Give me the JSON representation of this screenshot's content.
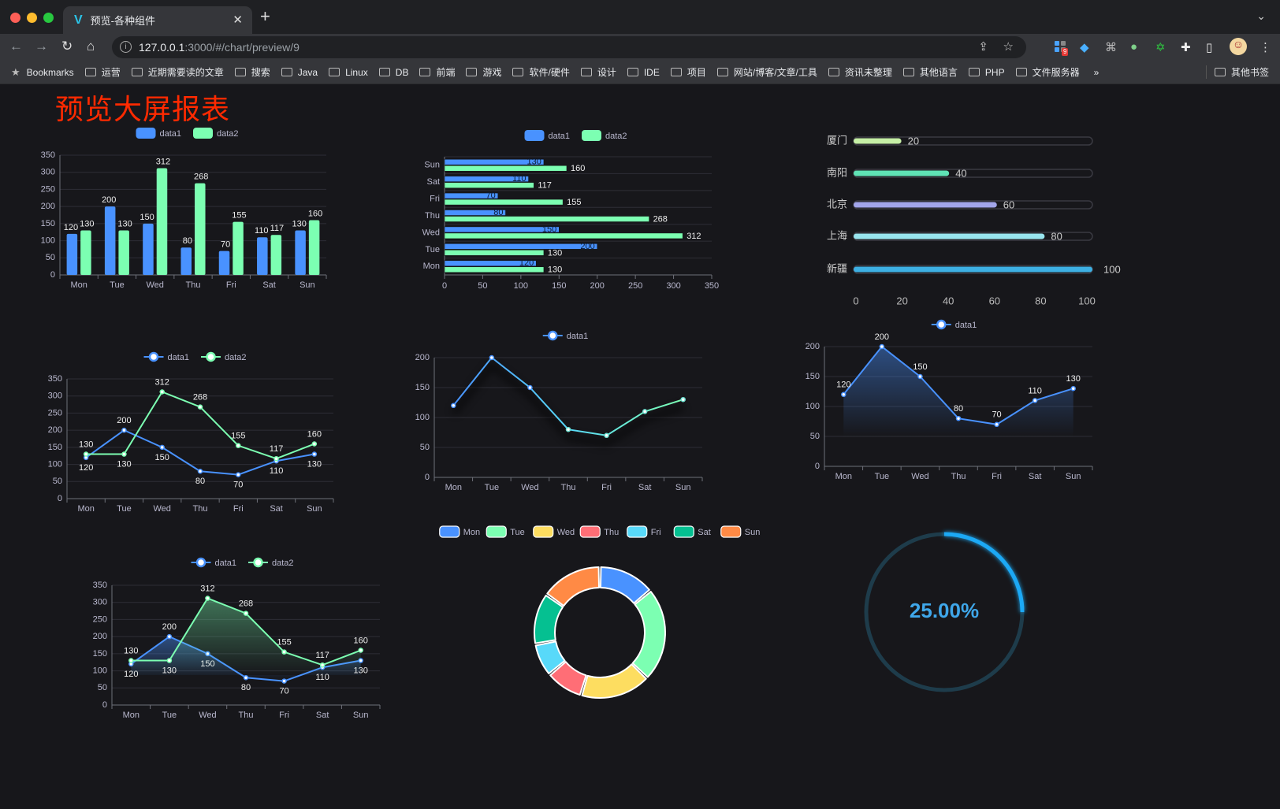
{
  "browser": {
    "tab_title": "预览-各种组件",
    "url_host": "127.0.0.1",
    "url_path": ":3000/#/chart/preview/9",
    "extension_badge": "9",
    "bookmarks": [
      "Bookmarks",
      "运营",
      "近期需要读的文章",
      "搜索",
      "Java",
      "Linux",
      "DB",
      "前端",
      "游戏",
      "软件/硬件",
      "设计",
      "IDE",
      "项目",
      "网站/博客/文章/工具",
      "资讯未整理",
      "其他语言",
      "PHP",
      "文件服务器"
    ],
    "bookmarks_overflow": "»",
    "other_bookmarks": "其他书签"
  },
  "page": {
    "title": "预览大屏报表",
    "title_color": "#ff2a00",
    "background": "#17171b"
  },
  "colors": {
    "data1": "#4992ff",
    "data2": "#7cffb2"
  },
  "chart_data": [
    {
      "type": "bar",
      "categories": [
        "Mon",
        "Tue",
        "Wed",
        "Thu",
        "Fri",
        "Sat",
        "Sun"
      ],
      "series": [
        {
          "name": "data1",
          "values": [
            120,
            200,
            150,
            80,
            70,
            110,
            130
          ]
        },
        {
          "name": "data2",
          "values": [
            130,
            130,
            312,
            268,
            155,
            117,
            160
          ]
        }
      ],
      "ylim": [
        0,
        350
      ],
      "yticks": [
        0,
        50,
        100,
        150,
        200,
        250,
        300,
        350
      ],
      "legend": "top",
      "grid": true,
      "data_labels": true
    },
    {
      "type": "bar",
      "orientation": "horizontal",
      "categories": [
        "Mon",
        "Tue",
        "Wed",
        "Thu",
        "Fri",
        "Sat",
        "Sun"
      ],
      "series": [
        {
          "name": "data1",
          "values": [
            120,
            200,
            150,
            80,
            70,
            110,
            130
          ]
        },
        {
          "name": "data2",
          "values": [
            130,
            130,
            312,
            268,
            155,
            117,
            160
          ]
        }
      ],
      "xlim": [
        0,
        350
      ],
      "xticks": [
        0,
        50,
        100,
        150,
        200,
        250,
        300,
        350
      ],
      "legend": "top",
      "grid": true,
      "data_labels": true
    },
    {
      "type": "bar",
      "orientation": "horizontal",
      "style": "progress",
      "categories": [
        "厦门",
        "南阳",
        "北京",
        "上海",
        "新疆"
      ],
      "values": [
        20,
        40,
        60,
        80,
        100
      ],
      "colors": [
        "#c6efa6",
        "#5fe3b5",
        "#a2a5ea",
        "#98e5ee",
        "#3db0e4"
      ],
      "xlim": [
        0,
        100
      ],
      "xticks": [
        0,
        20,
        40,
        60,
        80,
        100
      ],
      "data_labels": true
    },
    {
      "type": "line",
      "categories": [
        "Mon",
        "Tue",
        "Wed",
        "Thu",
        "Fri",
        "Sat",
        "Sun"
      ],
      "series": [
        {
          "name": "data1",
          "values": [
            120,
            200,
            150,
            80,
            70,
            110,
            130
          ]
        },
        {
          "name": "data2",
          "values": [
            130,
            130,
            312,
            268,
            155,
            117,
            160
          ]
        }
      ],
      "ylim": [
        0,
        350
      ],
      "yticks": [
        0,
        50,
        100,
        150,
        200,
        250,
        300,
        350
      ],
      "legend": "top",
      "grid": true,
      "data_labels": true
    },
    {
      "type": "line",
      "categories": [
        "Mon",
        "Tue",
        "Wed",
        "Thu",
        "Fri",
        "Sat",
        "Sun"
      ],
      "series": [
        {
          "name": "data1",
          "values": [
            120,
            200,
            150,
            80,
            70,
            110,
            130
          ]
        }
      ],
      "line_gradient": [
        "#4992ff",
        "#58d9f9",
        "#7cffb2"
      ],
      "ylim": [
        0,
        200
      ],
      "yticks": [
        0,
        50,
        100,
        150,
        200
      ],
      "legend": "top",
      "grid": true,
      "data_labels": false
    },
    {
      "type": "area",
      "categories": [
        "Mon",
        "Tue",
        "Wed",
        "Thu",
        "Fri",
        "Sat",
        "Sun"
      ],
      "series": [
        {
          "name": "data1",
          "values": [
            120,
            200,
            150,
            80,
            70,
            110,
            130
          ]
        }
      ],
      "ylim": [
        0,
        200
      ],
      "yticks": [
        0,
        50,
        100,
        150,
        200
      ],
      "legend": "top",
      "grid": true,
      "data_labels": true
    },
    {
      "type": "area",
      "categories": [
        "Mon",
        "Tue",
        "Wed",
        "Thu",
        "Fri",
        "Sat",
        "Sun"
      ],
      "series": [
        {
          "name": "data1",
          "values": [
            120,
            200,
            150,
            80,
            70,
            110,
            130
          ]
        },
        {
          "name": "data2",
          "values": [
            130,
            130,
            312,
            268,
            155,
            117,
            160
          ]
        }
      ],
      "ylim": [
        0,
        350
      ],
      "yticks": [
        0,
        50,
        100,
        150,
        200,
        250,
        300,
        350
      ],
      "legend": "top",
      "grid": true,
      "data_labels": true
    },
    {
      "type": "pie",
      "style": "donut",
      "categories": [
        "Mon",
        "Tue",
        "Wed",
        "Thu",
        "Fri",
        "Sat",
        "Sun"
      ],
      "values": [
        120,
        200,
        150,
        80,
        70,
        110,
        130
      ],
      "colors": [
        "#4992ff",
        "#7cffb2",
        "#fddd60",
        "#ff6e76",
        "#58d9f9",
        "#05c091",
        "#ff8a45"
      ],
      "legend": "top"
    },
    {
      "type": "gauge",
      "value": 25,
      "max": 100,
      "label": "25.00%",
      "color": "#1ea9f5",
      "track_color": "#1e3c4b"
    }
  ]
}
